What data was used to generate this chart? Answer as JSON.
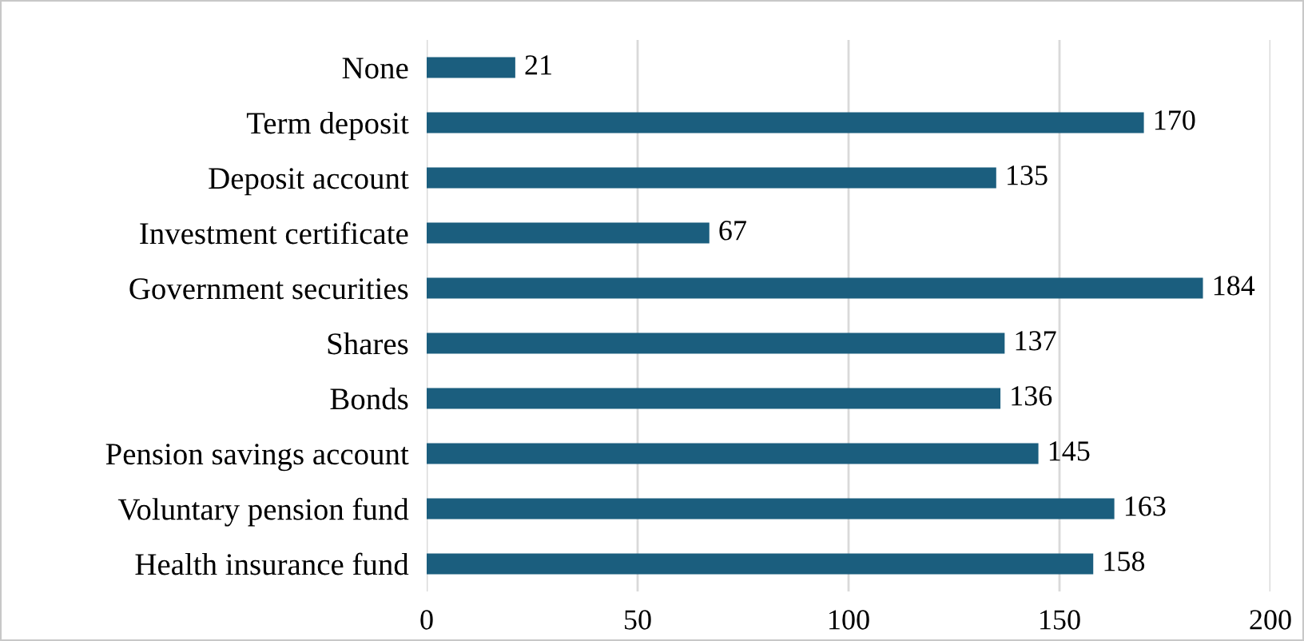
{
  "chart_data": {
    "type": "bar",
    "orientation": "horizontal",
    "categories": [
      "None",
      "Term deposit",
      "Deposit account",
      "Investment certificate",
      "Government securities",
      "Shares",
      "Bonds",
      "Pension savings account",
      "Voluntary pension fund",
      "Health insurance fund"
    ],
    "values": [
      21,
      170,
      135,
      67,
      184,
      137,
      136,
      145,
      163,
      158
    ],
    "color": "#1b5e7e",
    "xlim": [
      0,
      200
    ],
    "xticks": [
      0,
      50,
      100,
      150,
      200
    ],
    "grid": "x",
    "data_labels": true
  }
}
